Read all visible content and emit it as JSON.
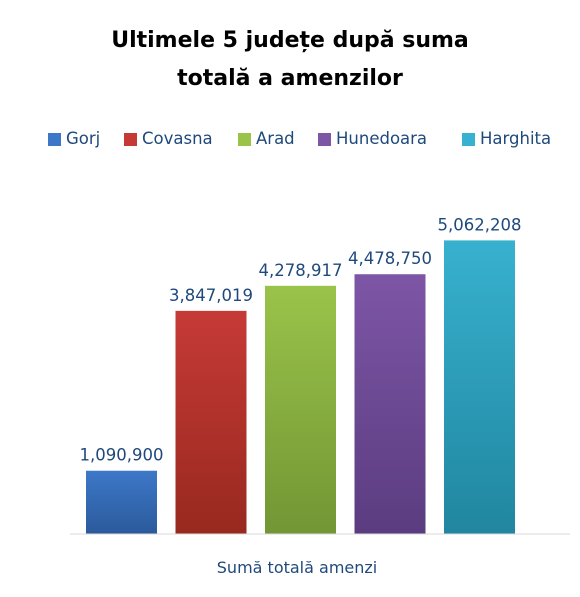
{
  "chart_data": {
    "type": "bar",
    "title": "Ultimele 5 județe după suma totală a amenzilor",
    "title_lines": [
      "Ultimele 5 județe după suma",
      "totală a amenzilor"
    ],
    "categories": [
      "Sumă totală amenzi"
    ],
    "xlabel": "Sumă totală amenzi",
    "ylabel": "",
    "ylim": [
      0,
      6000000
    ],
    "grid": false,
    "legend_position": "top",
    "series": [
      {
        "name": "Gorj",
        "values": [
          1090900
        ],
        "label": "1,090,900",
        "color": "#3d78c8",
        "color_dark": "#2b5a9b"
      },
      {
        "name": "Covasna",
        "values": [
          3847019
        ],
        "label": "3,847,019",
        "color": "#c63a36",
        "color_dark": "#98291f"
      },
      {
        "name": "Arad",
        "values": [
          4278917
        ],
        "label": "4,278,917",
        "color": "#9ac34a",
        "color_dark": "#729634"
      },
      {
        "name": "Hunedoara",
        "values": [
          4478750
        ],
        "label": "4,478,750",
        "color": "#7d56a6",
        "color_dark": "#5b3c80"
      },
      {
        "name": "Harghita",
        "values": [
          5062208
        ],
        "label": "5,062,208",
        "color": "#37b1cf",
        "color_dark": "#21869f"
      }
    ]
  }
}
